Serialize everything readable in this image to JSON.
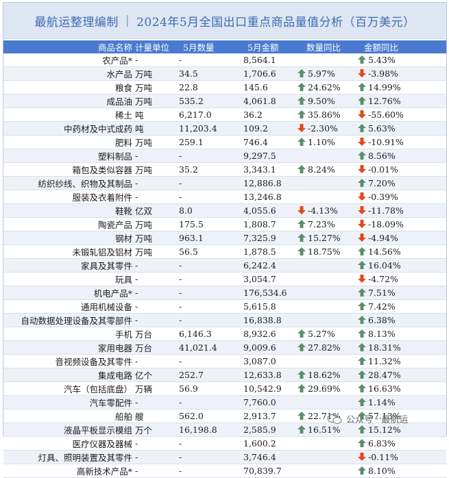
{
  "title": {
    "author": "最航运整理编制",
    "separator": "|",
    "text": "2024年5月全国出口重点商品量值分析（百万美元）"
  },
  "columns": [
    "商品名称",
    "计量单位",
    "5月数量",
    "5月金额",
    "数量同比",
    "金额同比"
  ],
  "rows": [
    {
      "name": "农产品*",
      "unit": "-",
      "qty": "-",
      "amt": "8,564.1",
      "qty_yoy": "",
      "qty_dir": "",
      "amt_yoy": "5.43%",
      "amt_dir": "up"
    },
    {
      "name": "水产品",
      "unit": "万吨",
      "qty": "34.5",
      "amt": "1,706.6",
      "qty_yoy": "5.97%",
      "qty_dir": "up",
      "amt_yoy": "-3.98%",
      "amt_dir": "down"
    },
    {
      "name": "粮食",
      "unit": "万吨",
      "qty": "22.8",
      "amt": "145.6",
      "qty_yoy": "24.62%",
      "qty_dir": "up",
      "amt_yoy": "14.99%",
      "amt_dir": "up"
    },
    {
      "name": "成品油",
      "unit": "万吨",
      "qty": "535.2",
      "amt": "4,061.8",
      "qty_yoy": "9.50%",
      "qty_dir": "up",
      "amt_yoy": "12.76%",
      "amt_dir": "up"
    },
    {
      "name": "稀土",
      "unit": "吨",
      "qty": "6,217.0",
      "amt": "36.2",
      "qty_yoy": "35.86%",
      "qty_dir": "up",
      "amt_yoy": "-55.60%",
      "amt_dir": "down"
    },
    {
      "name": "中药材及中式成药",
      "unit": "吨",
      "qty": "11,203.4",
      "amt": "109.2",
      "qty_yoy": "-2.30%",
      "qty_dir": "down",
      "amt_yoy": "5.63%",
      "amt_dir": "up"
    },
    {
      "name": "肥料",
      "unit": "万吨",
      "qty": "259.1",
      "amt": "746.4",
      "qty_yoy": "1.10%",
      "qty_dir": "up",
      "amt_yoy": "-10.91%",
      "amt_dir": "down"
    },
    {
      "name": "塑料制品",
      "unit": "-",
      "qty": "-",
      "amt": "9,297.5",
      "qty_yoy": "",
      "qty_dir": "",
      "amt_yoy": "8.56%",
      "amt_dir": "up"
    },
    {
      "name": "箱包及类似容器",
      "unit": "万吨",
      "qty": "35.2",
      "amt": "3,343.1",
      "qty_yoy": "8.24%",
      "qty_dir": "up",
      "amt_yoy": "-0.01%",
      "amt_dir": "down"
    },
    {
      "name": "纺织纱线、织物及其制品",
      "unit": "-",
      "qty": "-",
      "amt": "12,886.8",
      "qty_yoy": "",
      "qty_dir": "",
      "amt_yoy": "7.20%",
      "amt_dir": "up"
    },
    {
      "name": "服装及衣着附件",
      "unit": "-",
      "qty": "-",
      "amt": "13,246.8",
      "qty_yoy": "",
      "qty_dir": "",
      "amt_yoy": "-0.39%",
      "amt_dir": "down"
    },
    {
      "name": "鞋靴",
      "unit": "亿双",
      "qty": "8.0",
      "amt": "4,055.6",
      "qty_yoy": "-4.13%",
      "qty_dir": "down",
      "amt_yoy": "-11.78%",
      "amt_dir": "down"
    },
    {
      "name": "陶瓷产品",
      "unit": "万吨",
      "qty": "175.5",
      "amt": "1,808.7",
      "qty_yoy": "7.23%",
      "qty_dir": "up",
      "amt_yoy": "-18.09%",
      "amt_dir": "down"
    },
    {
      "name": "钢材",
      "unit": "万吨",
      "qty": "963.1",
      "amt": "7,325.9",
      "qty_yoy": "15.27%",
      "qty_dir": "up",
      "amt_yoy": "-4.94%",
      "amt_dir": "down"
    },
    {
      "name": "未锻轧铝及铝材",
      "unit": "万吨",
      "qty": "56.5",
      "amt": "1,878.5",
      "qty_yoy": "18.75%",
      "qty_dir": "up",
      "amt_yoy": "14.56%",
      "amt_dir": "up"
    },
    {
      "name": "家具及其零件",
      "unit": "-",
      "qty": "-",
      "amt": "6,242.4",
      "qty_yoy": "",
      "qty_dir": "",
      "amt_yoy": "16.04%",
      "amt_dir": "up"
    },
    {
      "name": "玩具",
      "unit": "-",
      "qty": "-",
      "amt": "3,054.7",
      "qty_yoy": "",
      "qty_dir": "",
      "amt_yoy": "-4.72%",
      "amt_dir": "down"
    },
    {
      "name": "机电产品*",
      "unit": "-",
      "qty": "-",
      "amt": "176,534.6",
      "qty_yoy": "",
      "qty_dir": "",
      "amt_yoy": "7.51%",
      "amt_dir": "up"
    },
    {
      "name": "通用机械设备",
      "unit": "-",
      "qty": "-",
      "amt": "5,615.8",
      "qty_yoy": "",
      "qty_dir": "",
      "amt_yoy": "7.42%",
      "amt_dir": "up"
    },
    {
      "name": "自动数据处理设备及其零部件",
      "unit": "-",
      "qty": "-",
      "amt": "16,838.8",
      "qty_yoy": "",
      "qty_dir": "",
      "amt_yoy": "6.38%",
      "amt_dir": "up"
    },
    {
      "name": "手机",
      "unit": "万台",
      "qty": "6,146.3",
      "amt": "8,932.6",
      "qty_yoy": "5.27%",
      "qty_dir": "up",
      "amt_yoy": "8.13%",
      "amt_dir": "up"
    },
    {
      "name": "家用电器",
      "unit": "万台",
      "qty": "41,021.4",
      "amt": "9,009.6",
      "qty_yoy": "27.82%",
      "qty_dir": "up",
      "amt_yoy": "18.31%",
      "amt_dir": "up"
    },
    {
      "name": "音视频设备及其零件",
      "unit": "-",
      "qty": "-",
      "amt": "3,087.0",
      "qty_yoy": "",
      "qty_dir": "",
      "amt_yoy": "11.32%",
      "amt_dir": "up"
    },
    {
      "name": "集成电路",
      "unit": "亿个",
      "qty": "252.7",
      "amt": "12,633.8",
      "qty_yoy": "18.62%",
      "qty_dir": "up",
      "amt_yoy": "28.47%",
      "amt_dir": "up"
    },
    {
      "name": "汽车（包括底盘）",
      "unit": "万辆",
      "qty": "56.9",
      "amt": "10,542.9",
      "qty_yoy": "29.69%",
      "qty_dir": "up",
      "amt_yoy": "16.63%",
      "amt_dir": "up"
    },
    {
      "name": "汽车零配件",
      "unit": "-",
      "qty": "-",
      "amt": "7,760.0",
      "qty_yoy": "",
      "qty_dir": "",
      "amt_yoy": "1.14%",
      "amt_dir": "up"
    },
    {
      "name": "船舶",
      "unit": "艘",
      "qty": "562.0",
      "amt": "2,913.7",
      "qty_yoy": "22.71%",
      "qty_dir": "up",
      "amt_yoy": "57.13%",
      "amt_dir": "up"
    },
    {
      "name": "液晶平板显示模组",
      "unit": "万个",
      "qty": "16,198.8",
      "amt": "2,585.9",
      "qty_yoy": "16.51%",
      "qty_dir": "up",
      "amt_yoy": "15.12%",
      "amt_dir": "up"
    },
    {
      "name": "医疗仪器及器械",
      "unit": "-",
      "qty": "-",
      "amt": "1,600.2",
      "qty_yoy": "",
      "qty_dir": "",
      "amt_yoy": "6.83%",
      "amt_dir": "up"
    },
    {
      "name": "灯具、照明装置及其零件",
      "unit": "-",
      "qty": "-",
      "amt": "3,746.4",
      "qty_yoy": "",
      "qty_dir": "",
      "amt_yoy": "-0.11%",
      "amt_dir": "down"
    },
    {
      "name": "高新技术产品*",
      "unit": "-",
      "qty": "-",
      "amt": "70,839.7",
      "qty_yoy": "",
      "qty_dir": "",
      "amt_yoy": "8.10%",
      "amt_dir": "up"
    }
  ],
  "colors": {
    "up": "#5a8f6c",
    "down": "#e0491c",
    "header_bg": "#4a7bd0",
    "title_text": "#3d6cb4"
  },
  "icons": {
    "up": "up-arrow-icon",
    "down": "down-arrow-icon"
  },
  "watermark": {
    "text": "公众号 · 最航运",
    "icon": "wechat-icon"
  }
}
